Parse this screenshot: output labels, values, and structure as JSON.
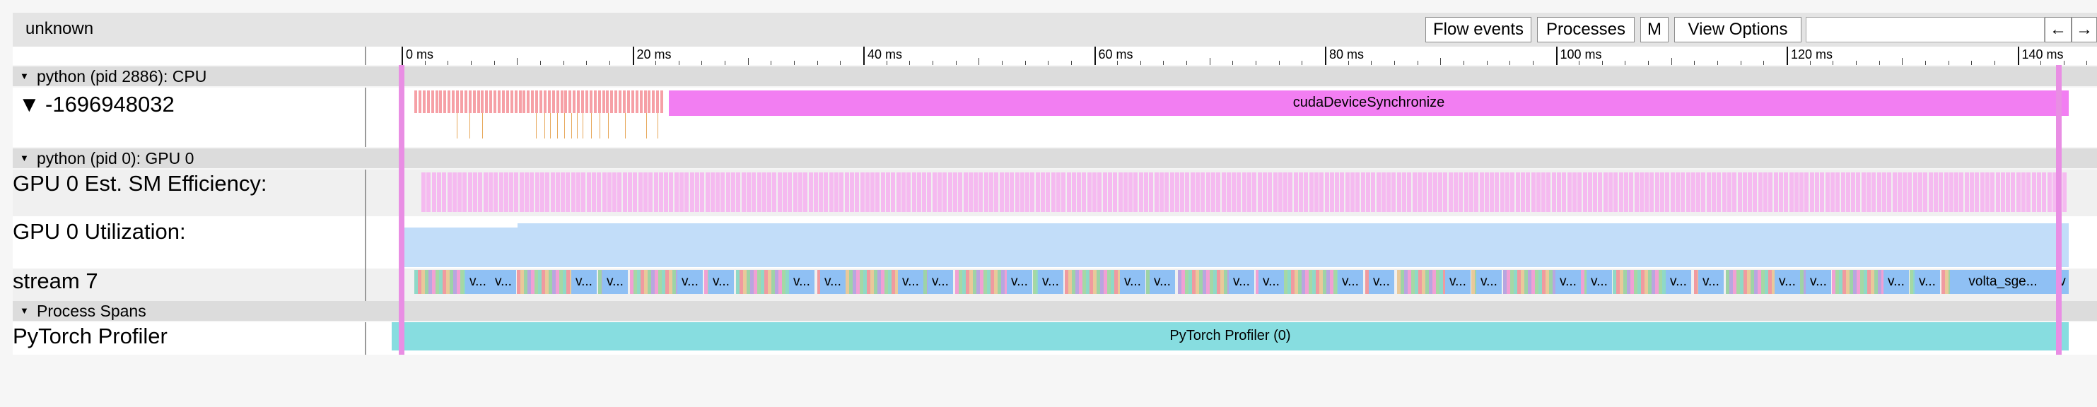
{
  "app": {
    "title": "unknown"
  },
  "toolbar": {
    "flow_events": "Flow events",
    "processes": "Processes",
    "m": "M",
    "view_options": "View Options",
    "search_value": "",
    "prev": "←",
    "next": "→"
  },
  "ruler": {
    "ticks": [
      "0 ms",
      "20 ms",
      "40 ms",
      "60 ms",
      "80 ms",
      "100 ms",
      "120 ms",
      "140 ms"
    ]
  },
  "groups": {
    "cpu": {
      "header": "python (pid 2886): CPU",
      "thread_label": "-1696948032",
      "sync_label": "cudaDeviceSynchronize"
    },
    "gpu": {
      "header": "python (pid 0): GPU 0",
      "sm_label": "GPU 0 Est. SM Efficiency:",
      "util_label": "GPU 0 Utilization:",
      "stream_label": "stream 7",
      "kernel_short": "v...",
      "last_kernel": "volta_sge...",
      "tail_kernel": "v"
    },
    "spans": {
      "header": "Process Spans",
      "row_label": "PyTorch Profiler",
      "span_label": "PyTorch Profiler (0)"
    }
  },
  "colors": {
    "sync": "#f27ef2",
    "cpu_ops": "#f6a0a6",
    "sm_eff": "#f5baf0",
    "util": "#c2ddf9",
    "span": "#87dde0",
    "marker": "#e98ee4",
    "kernel_palette": [
      "#8fd9c7",
      "#f09aa0",
      "#e9c99a",
      "#9ed3a6",
      "#b8a6e0",
      "#f1a0d4",
      "#a5d8a5"
    ],
    "kernel_blue": "#8fc0f4"
  }
}
